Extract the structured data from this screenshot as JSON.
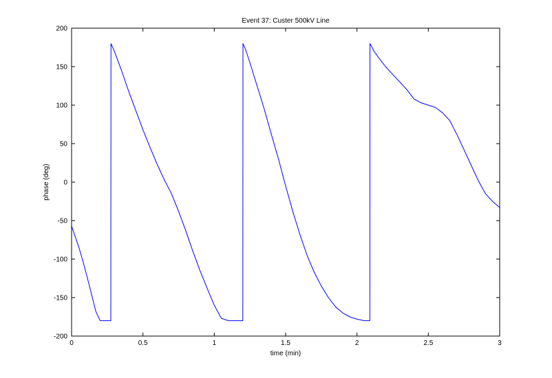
{
  "chart_data": {
    "type": "line",
    "title": "Event 37: Custer 500kV Line",
    "xlabel": "time (min)",
    "ylabel": "phase (deg)",
    "xlim": [
      0,
      3
    ],
    "ylim": [
      -200,
      200
    ],
    "xticks": [
      0,
      0.5,
      1,
      1.5,
      2,
      2.5,
      3
    ],
    "xtick_labels": [
      "0",
      "0.5",
      "1",
      "1.5",
      "2",
      "2.5",
      "3"
    ],
    "yticks": [
      -200,
      -150,
      -100,
      -50,
      0,
      50,
      100,
      150,
      200
    ],
    "ytick_labels": [
      "-200",
      "-150",
      "-100",
      "-50",
      "0",
      "50",
      "100",
      "150",
      "200"
    ],
    "grid": false,
    "line_color": "#0000ff",
    "series": [
      {
        "x": [
          0.0,
          0.02,
          0.05,
          0.08,
          0.11,
          0.14,
          0.17,
          0.2,
          0.23,
          0.26,
          0.275,
          0.276,
          0.3,
          0.35,
          0.4,
          0.45,
          0.5,
          0.55,
          0.6,
          0.65,
          0.7,
          0.75,
          0.8,
          0.85,
          0.9,
          0.95,
          1.0,
          1.05,
          1.1,
          1.15,
          1.18,
          1.2,
          1.201,
          1.22,
          1.25,
          1.3,
          1.35,
          1.4,
          1.45,
          1.5,
          1.55,
          1.6,
          1.65,
          1.7,
          1.75,
          1.8,
          1.85,
          1.9,
          1.95,
          2.0,
          2.05,
          2.08,
          2.09,
          2.091,
          2.12,
          2.15,
          2.2,
          2.25,
          2.3,
          2.35,
          2.4,
          2.45,
          2.5,
          2.55,
          2.6,
          2.65,
          2.7,
          2.75,
          2.8,
          2.85,
          2.9,
          2.95,
          3.0
        ],
        "y": [
          -57,
          -68,
          -84,
          -103,
          -124,
          -146,
          -168,
          -180,
          -180,
          -180,
          -180,
          180,
          170,
          145,
          118,
          93,
          68,
          45,
          23,
          3,
          -15,
          -38,
          -63,
          -90,
          -115,
          -138,
          -160,
          -177,
          -180,
          -180,
          -180,
          -180,
          180,
          172,
          155,
          125,
          95,
          62,
          30,
          -5,
          -38,
          -68,
          -95,
          -117,
          -135,
          -150,
          -162,
          -170,
          -175,
          -178,
          -180,
          -180,
          -180,
          180,
          170,
          162,
          150,
          140,
          130,
          120,
          108,
          103,
          100,
          97,
          90,
          80,
          62,
          42,
          22,
          2,
          -15,
          -25,
          -33
        ]
      }
    ]
  }
}
